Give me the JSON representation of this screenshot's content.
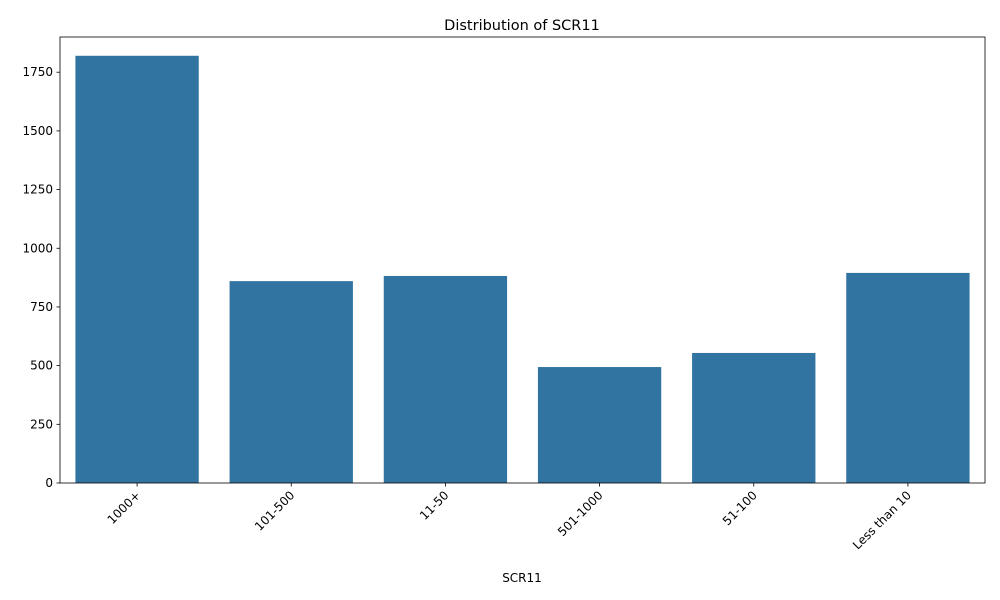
{
  "chart_data": {
    "type": "bar",
    "title": "Distribution of SCR11",
    "xlabel": "SCR11",
    "ylabel": "",
    "categories": [
      "1000+",
      "101-500",
      "11-50",
      "501-1000",
      "51-100",
      "Less than 10"
    ],
    "values": [
      1820,
      860,
      882,
      494,
      554,
      895
    ],
    "ylim": [
      0,
      1900
    ],
    "yticks": [
      0,
      250,
      500,
      750,
      1000,
      1250,
      1500,
      1750
    ],
    "grid": false,
    "legend": "none",
    "bar_color": "#3274a1"
  }
}
